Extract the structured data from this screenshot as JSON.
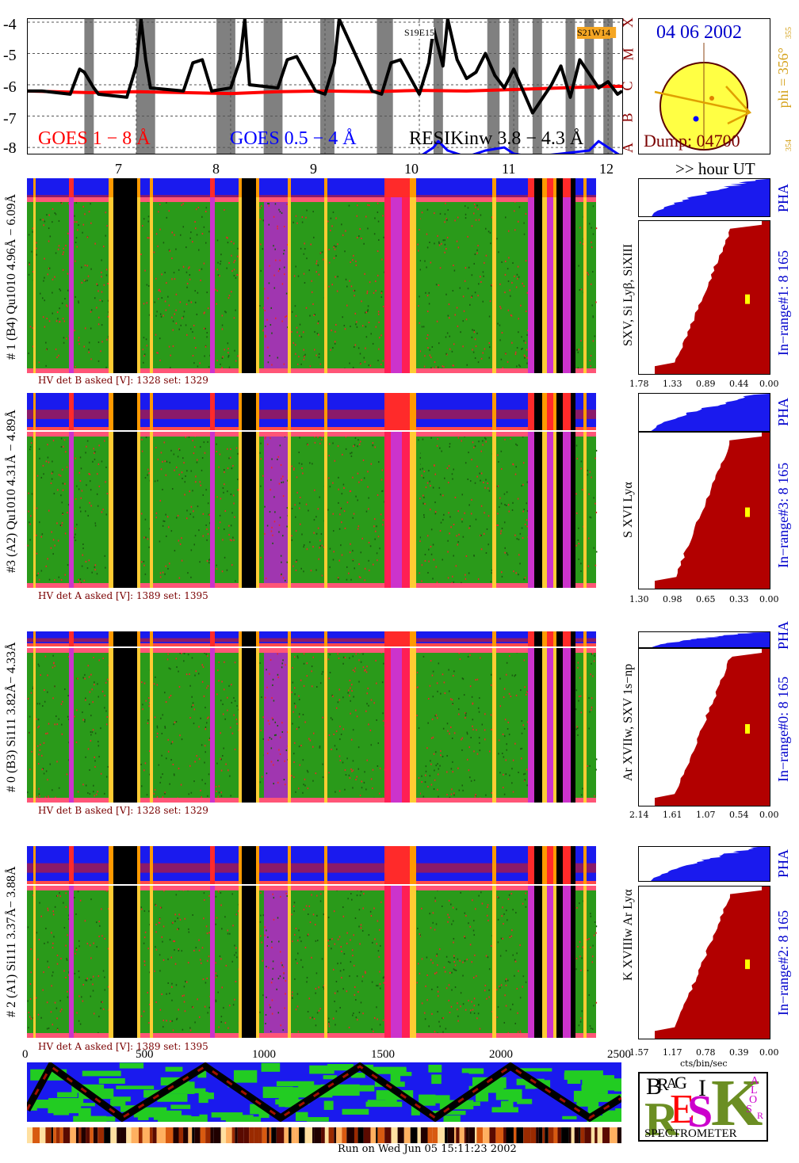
{
  "goes": {
    "y_ticks": [
      "-4",
      "-5",
      "-6",
      "-7",
      "-8"
    ],
    "class_labels": [
      "X",
      "M",
      "C",
      "B",
      "A"
    ],
    "legend_goes18": "GOES 1 − 8 Å",
    "legend_goes054": "GOES 0.5 − 4 Å",
    "legend_resik": "RESIKinw 3.8 − 4.3 Å",
    "ar_label_1": "S19E15",
    "ar_label_2": "S21W14",
    "colors": {
      "goes18": "#ff0000",
      "goes054": "#0000ff",
      "resik": "#000000",
      "eclipse": "#808080"
    }
  },
  "chart_data": [
    {
      "type": "line",
      "x_axis": "hour UT",
      "x_ticks": [
        7,
        8,
        9,
        10,
        11,
        12
      ],
      "xlim": [
        5.85,
        12.15
      ],
      "ylim": [
        -8.2,
        -3.9
      ],
      "ylabel_ticks": [
        -4,
        -5,
        -6,
        -7,
        -8
      ],
      "series": [
        {
          "name": "GOES 1 − 8 Å",
          "color": "#ff0000",
          "x": [
            5.85,
            6.5,
            7.0,
            7.5,
            8.0,
            8.5,
            9.0,
            9.5,
            10.0,
            10.5,
            11.0,
            11.5,
            12.0,
            12.15
          ],
          "values": [
            -6.2,
            -6.25,
            -6.22,
            -6.25,
            -6.28,
            -6.22,
            -6.2,
            -6.22,
            -6.18,
            -6.2,
            -6.15,
            -6.1,
            -6.05,
            -6.05
          ]
        },
        {
          "name": "RESIKinw 3.8 − 4.3 Å",
          "color": "#000000",
          "x": [
            5.85,
            6.0,
            6.3,
            6.4,
            6.45,
            6.55,
            6.6,
            6.9,
            7.0,
            7.05,
            7.1,
            7.15,
            7.5,
            7.6,
            7.7,
            7.8,
            8.0,
            8.1,
            8.15,
            8.2,
            8.5,
            8.6,
            8.7,
            8.9,
            9.0,
            9.1,
            9.15,
            9.5,
            9.6,
            9.7,
            9.8,
            10.0,
            10.1,
            10.15,
            10.2,
            10.25,
            10.3,
            10.4,
            10.5,
            10.6,
            10.7,
            10.8,
            10.9,
            11.0,
            11.1,
            11.2,
            11.4,
            11.5,
            11.6,
            11.7,
            11.9,
            12.0,
            12.1,
            12.15
          ],
          "values": [
            -6.2,
            -6.2,
            -6.3,
            -5.5,
            -5.6,
            -6.1,
            -6.3,
            -6.4,
            -5.4,
            -3.9,
            -5.2,
            -6.1,
            -6.2,
            -5.3,
            -5.2,
            -6.2,
            -6.1,
            -5.2,
            -3.9,
            -6.0,
            -6.1,
            -5.2,
            -5.1,
            -6.2,
            -6.3,
            -5.3,
            -3.9,
            -6.2,
            -6.3,
            -5.3,
            -5.2,
            -6.3,
            -5.3,
            -4.2,
            -4.8,
            -5.4,
            -3.9,
            -5.2,
            -5.8,
            -5.6,
            -5.0,
            -5.7,
            -6.1,
            -5.5,
            -6.2,
            -6.9,
            -6.0,
            -5.4,
            -6.4,
            -5.2,
            -6.1,
            -5.9,
            -6.3,
            -6.2
          ]
        },
        {
          "name": "GOES 0.5 − 4 Å",
          "color": "#0000ff",
          "x": [
            5.85,
            6.5,
            7.0,
            8.0,
            9.0,
            10.0,
            10.15,
            10.2,
            10.3,
            10.5,
            10.7,
            10.9,
            11.0,
            11.2,
            11.5,
            11.8,
            11.9,
            12.0,
            12.15
          ],
          "values": [
            -8.3,
            -8.3,
            -8.3,
            -8.3,
            -8.3,
            -8.3,
            -8.0,
            -7.8,
            -8.1,
            -8.3,
            -8.1,
            -8.0,
            -8.2,
            -8.3,
            -8.2,
            -8.1,
            -7.8,
            -8.0,
            -8.3
          ]
        }
      ],
      "eclipse_intervals": [
        [
          6.45,
          6.55
        ],
        [
          7.0,
          7.2
        ],
        [
          7.85,
          8.05
        ],
        [
          8.35,
          8.55
        ],
        [
          8.95,
          9.1
        ],
        [
          9.55,
          9.72
        ],
        [
          10.15,
          10.25
        ],
        [
          10.72,
          10.85
        ],
        [
          10.95,
          11.05
        ],
        [
          11.2,
          11.3
        ],
        [
          11.55,
          11.65
        ],
        [
          11.75,
          11.85
        ],
        [
          11.95,
          12.05
        ]
      ]
    },
    {
      "type": "heatmap",
      "name": "Detector #1 (B4) Qu1010 4.96Å − 6.09Å",
      "hv_label": "HV det B asked [V]:  1328 set:  1329",
      "side_label": "SXV, Si Lyβ, SiXIII",
      "range_label": "In−range#1:  8 165",
      "scale_ticks": [
        "1.78",
        "1.33",
        "0.89",
        "0.44",
        "0.00"
      ]
    },
    {
      "type": "heatmap",
      "name": "Detector #3 (A2) Qu1010 4.31Å − 4.89Å",
      "hv_label": "HV det A asked [V]:  1389 set:  1395",
      "side_label": "S XVI Lyα",
      "range_label": "In−range#3:  8 165",
      "scale_ticks": [
        "1.30",
        "0.98",
        "0.65",
        "0.33",
        "0.00"
      ]
    },
    {
      "type": "heatmap",
      "name": "Detector #0 (B3) Si111 3.82Å− 4.33Å",
      "hv_label": "HV det B asked [V]:  1328 set:  1329",
      "side_label": "Ar XVIIw,  SXV 1s−np",
      "range_label": "In−range#0:  8 165",
      "scale_ticks": [
        "2.14",
        "1.61",
        "1.07",
        "0.54",
        "0.00"
      ]
    },
    {
      "type": "heatmap",
      "name": "Detector #2 (A1) Si111 3.37Å− 3.88Å",
      "hv_label": "HV det A asked [V]:  1389 set:  1395",
      "side_label": "K XVIIIw  Ar Lyα",
      "range_label": "In−range#2:  8 165",
      "scale_ticks": [
        "1.57",
        "1.17",
        "0.78",
        "0.39",
        "0.00"
      ],
      "scale_unit": "cts/bin/sec"
    }
  ],
  "sun": {
    "date": "04 06 2002",
    "dump": "Dump: 04700",
    "phi": "phi = 356°",
    "phi_small_top": "355",
    "phi_small_bottom": "354"
  },
  "time_axis": {
    "ticks": [
      "7",
      "8",
      "9",
      "10",
      "11",
      "12"
    ],
    "unit": ">> hour UT"
  },
  "det_left": {
    "d1": "# 1 (B4) Qu1010 4.96Å − 6.09Å",
    "d3": "#3 (A2) Qu1010  4.31Å − 4.89Å",
    "d0": "# 0 (B3) Si111  3.82Å− 4.33Å",
    "d2": "# 2 (A1) Si111  3.37Å− 3.88Å"
  },
  "pha": "PHA",
  "bottom_axis": {
    "ticks": [
      "0",
      "500",
      "1000",
      "1500",
      "2000",
      "2500"
    ]
  },
  "run_text": "Run on Wed Jun 05 15:11:23 2002",
  "logo": {
    "big": "RESIK",
    "b": "B",
    "r": "R",
    "a": "A",
    "g": "G",
    "s": "S",
    "o": "O",
    "l": "L",
    "bottom": "SPECTROMETER"
  }
}
